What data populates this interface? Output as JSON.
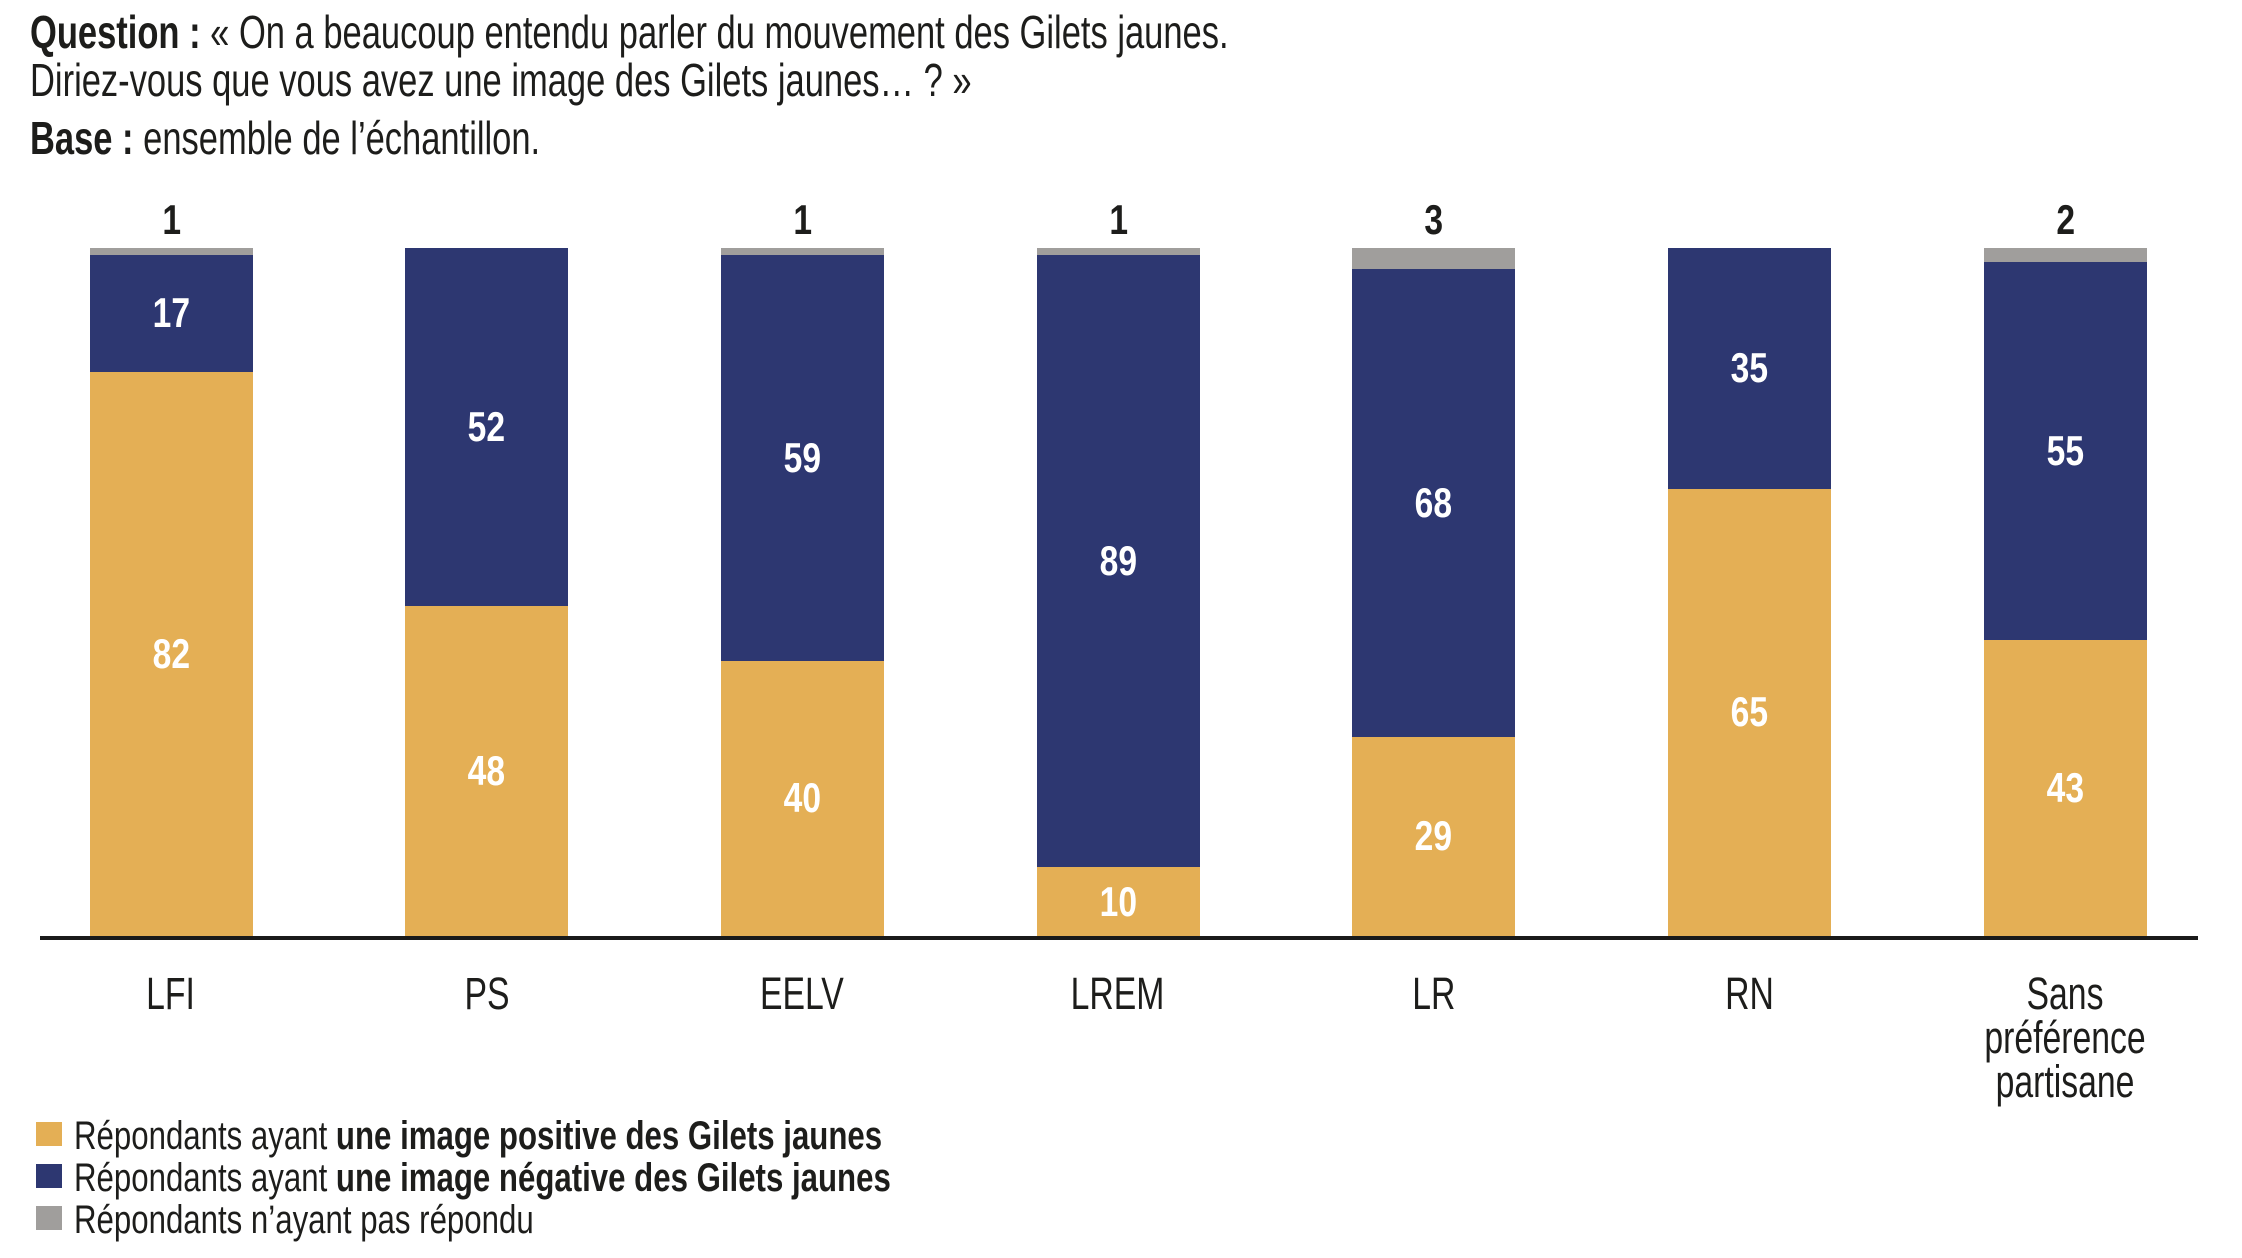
{
  "header": {
    "question_bold": "Question :",
    "question_rest": " « On a beaucoup entendu parler du mouvement des Gilets jaunes.",
    "question_line2": "Diriez-vous que vous avez une image des Gilets jaunes… ? »",
    "base_bold": "Base :",
    "base_rest": " ensemble de l’échantillon."
  },
  "colors": {
    "positive": "#E4AF55",
    "negative": "#2D3771",
    "no_answer": "#A09E9C",
    "axis": "#1A1A1A",
    "text": "#1D1D1B",
    "value_label": "#FFFFFF"
  },
  "chart_data": {
    "type": "bar",
    "stacked": true,
    "orientation": "vertical",
    "categories": [
      "LFI",
      "PS",
      "EELV",
      "LREM",
      "LR",
      "RN",
      "Sans préférence partisane"
    ],
    "series": [
      {
        "name": "Répondants ayant une image positive des Gilets jaunes",
        "key": "positive",
        "color": "#E4AF55",
        "values": [
          82,
          48,
          40,
          10,
          29,
          65,
          43
        ]
      },
      {
        "name": "Répondants ayant une image négative des Gilets jaunes",
        "key": "negative",
        "color": "#2D3771",
        "values": [
          17,
          52,
          59,
          89,
          68,
          35,
          55
        ]
      },
      {
        "name": "Répondants n’ayant pas répondu",
        "key": "no_answer",
        "color": "#A09E9C",
        "values": [
          1,
          0,
          1,
          1,
          3,
          0,
          2
        ]
      }
    ],
    "value_labels_inside": true,
    "no_answer_labels_above_bar": true,
    "ylim": [
      0,
      100
    ],
    "grid": false,
    "legend_position": "bottom-left"
  },
  "legend": [
    {
      "prefix": "Répondants ayant ",
      "bold": "une image positive des Gilets jaunes",
      "key": "positive"
    },
    {
      "prefix": "Répondants ayant ",
      "bold": "une image négative des Gilets jaunes",
      "key": "negative"
    },
    {
      "prefix": "Répondants n’ayant pas répondu",
      "bold": "",
      "key": "no_answer"
    }
  ]
}
